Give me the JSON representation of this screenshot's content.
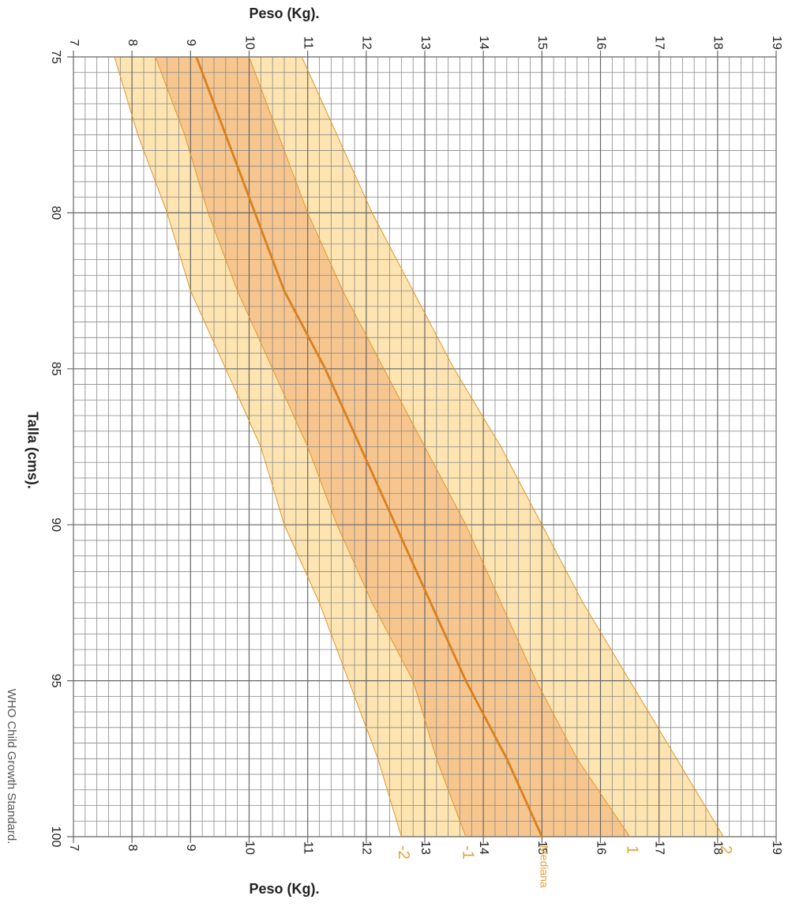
{
  "chart_data": {
    "type": "line",
    "y_label": "Peso (Kg).",
    "x_label": "Talla (cms).",
    "source": "WHO Child Growth Standard.",
    "x": [
      75,
      77.5,
      80,
      82.5,
      85,
      87.5,
      90,
      92.5,
      95,
      97.5,
      100
    ],
    "xlim": [
      75,
      100
    ],
    "xticks": [
      75,
      80,
      85,
      90,
      95,
      100
    ],
    "ylim": [
      7,
      19
    ],
    "yticks": [
      7,
      8,
      9,
      10,
      11,
      12,
      13,
      14,
      15,
      16,
      17,
      18,
      19
    ],
    "grid": true,
    "series": [
      {
        "name": "-2",
        "color": "#e0962a",
        "values": [
          7.7,
          8.1,
          8.6,
          9.0,
          9.6,
          10.2,
          10.6,
          11.2,
          11.7,
          12.2,
          12.6
        ]
      },
      {
        "name": "-1",
        "color": "#e0962a",
        "values": [
          8.4,
          8.9,
          9.3,
          9.8,
          10.4,
          11.0,
          11.5,
          12.1,
          12.8,
          13.2,
          13.7
        ]
      },
      {
        "name": "Mediana",
        "color": "#d9801e",
        "values": [
          9.1,
          9.6,
          10.1,
          10.6,
          11.3,
          11.9,
          12.5,
          13.1,
          13.7,
          14.4,
          15.0
        ]
      },
      {
        "name": "1",
        "color": "#e0962a",
        "values": [
          10.0,
          10.5,
          11.0,
          11.6,
          12.3,
          13.0,
          13.7,
          14.3,
          14.9,
          15.6,
          16.5
        ]
      },
      {
        "name": "2",
        "color": "#e0962a",
        "values": [
          10.9,
          11.5,
          12.1,
          12.8,
          13.5,
          14.3,
          15.0,
          15.7,
          16.5,
          17.3,
          18.1
        ]
      }
    ],
    "band_colors": [
      "#fde4b0",
      "#f7c68e"
    ]
  }
}
